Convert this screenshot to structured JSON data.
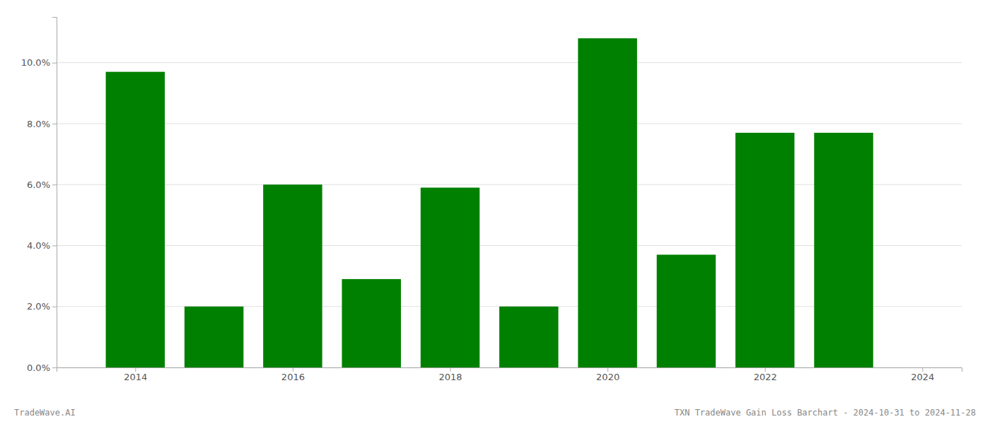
{
  "chart_data": {
    "type": "bar",
    "title": "TXN TradeWave Gain Loss Barchart - 2024-10-31 to 2024-11-28",
    "annotations": [
      "TradeWave.AI"
    ],
    "x": [
      2014,
      2015,
      2016,
      2017,
      2018,
      2019,
      2020,
      2021,
      2022,
      2023
    ],
    "values": [
      0.097,
      0.02,
      0.06,
      0.029,
      0.059,
      0.02,
      0.108,
      0.037,
      0.077,
      0.077
    ],
    "color": "#008000",
    "xlim": [
      2013.0,
      2024.5
    ],
    "xticks": [
      2014,
      2016,
      2018,
      2020,
      2022,
      2024
    ],
    "ylim": [
      0,
      0.115
    ],
    "yticks": [
      {
        "value": 0.0,
        "label": "0.0%"
      },
      {
        "value": 0.02,
        "label": "2.0%"
      },
      {
        "value": 0.04,
        "label": "4.0%"
      },
      {
        "value": 0.06,
        "label": "6.0%"
      },
      {
        "value": 0.08,
        "label": "8.0%"
      },
      {
        "value": 0.1,
        "label": "10.0%"
      }
    ],
    "grid": true
  }
}
